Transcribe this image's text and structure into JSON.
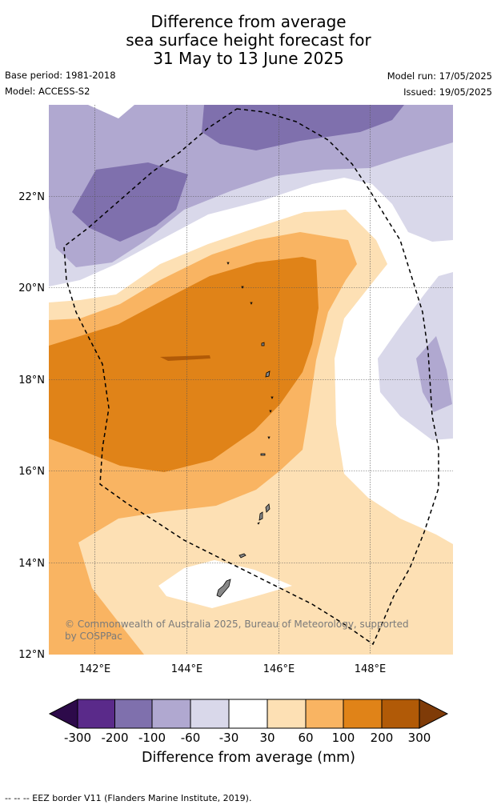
{
  "title": {
    "line1": "Difference from average",
    "line2": "sea surface height forecast for",
    "line3": "31 May to 13 June 2025"
  },
  "info": {
    "base_period": "Base period: 1981-2018",
    "model": "Model: ACCESS-S2",
    "model_run": "Model run: 17/05/2025",
    "issued": "Issued: 19/05/2025"
  },
  "map": {
    "lon_labels": [
      "142°E",
      "144°E",
      "146°E",
      "148°E"
    ],
    "lat_labels": [
      "22°N",
      "20°N",
      "18°N",
      "16°N",
      "14°N",
      "12°N"
    ],
    "copyright_line1": "© Commonwealth of Australia 2025, Bureau of Meteorology, supported",
    "copyright_line2": "by COSPPac",
    "colors": {
      "lt_-300": "#2d0a4a",
      "-300_-200": "#5a2a8a",
      "-200_-100": "#7f70ad",
      "-100_-60": "#b0a8d0",
      "-60_-30": "#d9d8ea",
      "-30_30": "#ffffff",
      "30_60": "#fde0b4",
      "60_100": "#f9b462",
      "100_200": "#e08318",
      "200_300": "#b15a07",
      "gt_300": "#7f3b08",
      "land": "#888888",
      "eez_line": "#000000"
    }
  },
  "colorbar": {
    "ticks": [
      "-300",
      "-200",
      "-100",
      "-60",
      "-30",
      "30",
      "60",
      "100",
      "200",
      "300"
    ],
    "label": "Difference from average (mm)"
  },
  "footer": "--  --  -- EEZ border V11 (Flanders Marine Institute, 2019)."
}
